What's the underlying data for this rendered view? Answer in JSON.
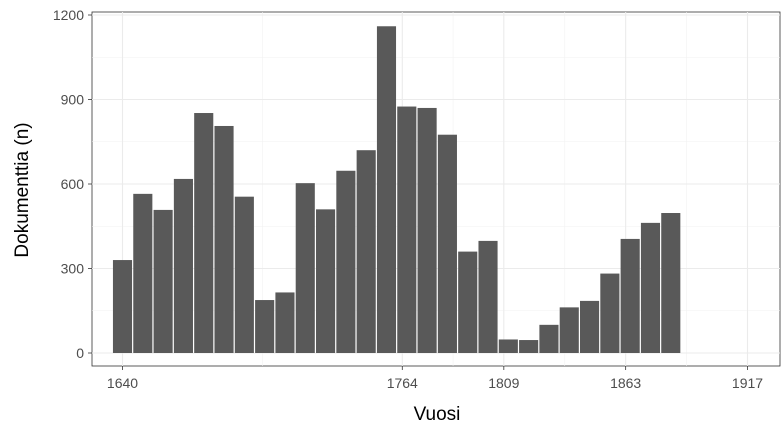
{
  "chart_data": {
    "type": "bar",
    "xlabel": "Vuosi",
    "ylabel": "Dokumenttia (n)",
    "x_ticks": [
      "1640",
      "1764",
      "1809",
      "1863",
      "1917"
    ],
    "y_ticks": [
      "0",
      "300",
      "600",
      "900",
      "1200"
    ],
    "ylim": [
      -75,
      1215
    ],
    "xlim": [
      1630,
      1930
    ],
    "bin_width": 9,
    "grid": true,
    "bar_color": "#595959",
    "bars": [
      {
        "x": 1640,
        "value": 330
      },
      {
        "x": 1649,
        "value": 565
      },
      {
        "x": 1658,
        "value": 508
      },
      {
        "x": 1667,
        "value": 618
      },
      {
        "x": 1676,
        "value": 852
      },
      {
        "x": 1685,
        "value": 806
      },
      {
        "x": 1694,
        "value": 555
      },
      {
        "x": 1703,
        "value": 188
      },
      {
        "x": 1712,
        "value": 215
      },
      {
        "x": 1721,
        "value": 603
      },
      {
        "x": 1730,
        "value": 510
      },
      {
        "x": 1739,
        "value": 647
      },
      {
        "x": 1748,
        "value": 720
      },
      {
        "x": 1757,
        "value": 1160
      },
      {
        "x": 1766,
        "value": 875
      },
      {
        "x": 1775,
        "value": 870
      },
      {
        "x": 1784,
        "value": 775
      },
      {
        "x": 1793,
        "value": 360
      },
      {
        "x": 1802,
        "value": 398
      },
      {
        "x": 1811,
        "value": 48
      },
      {
        "x": 1820,
        "value": 46
      },
      {
        "x": 1829,
        "value": 100
      },
      {
        "x": 1838,
        "value": 162
      },
      {
        "x": 1847,
        "value": 185
      },
      {
        "x": 1856,
        "value": 282
      },
      {
        "x": 1865,
        "value": 405
      },
      {
        "x": 1874,
        "value": 462
      },
      {
        "x": 1883,
        "value": 497
      }
    ]
  }
}
